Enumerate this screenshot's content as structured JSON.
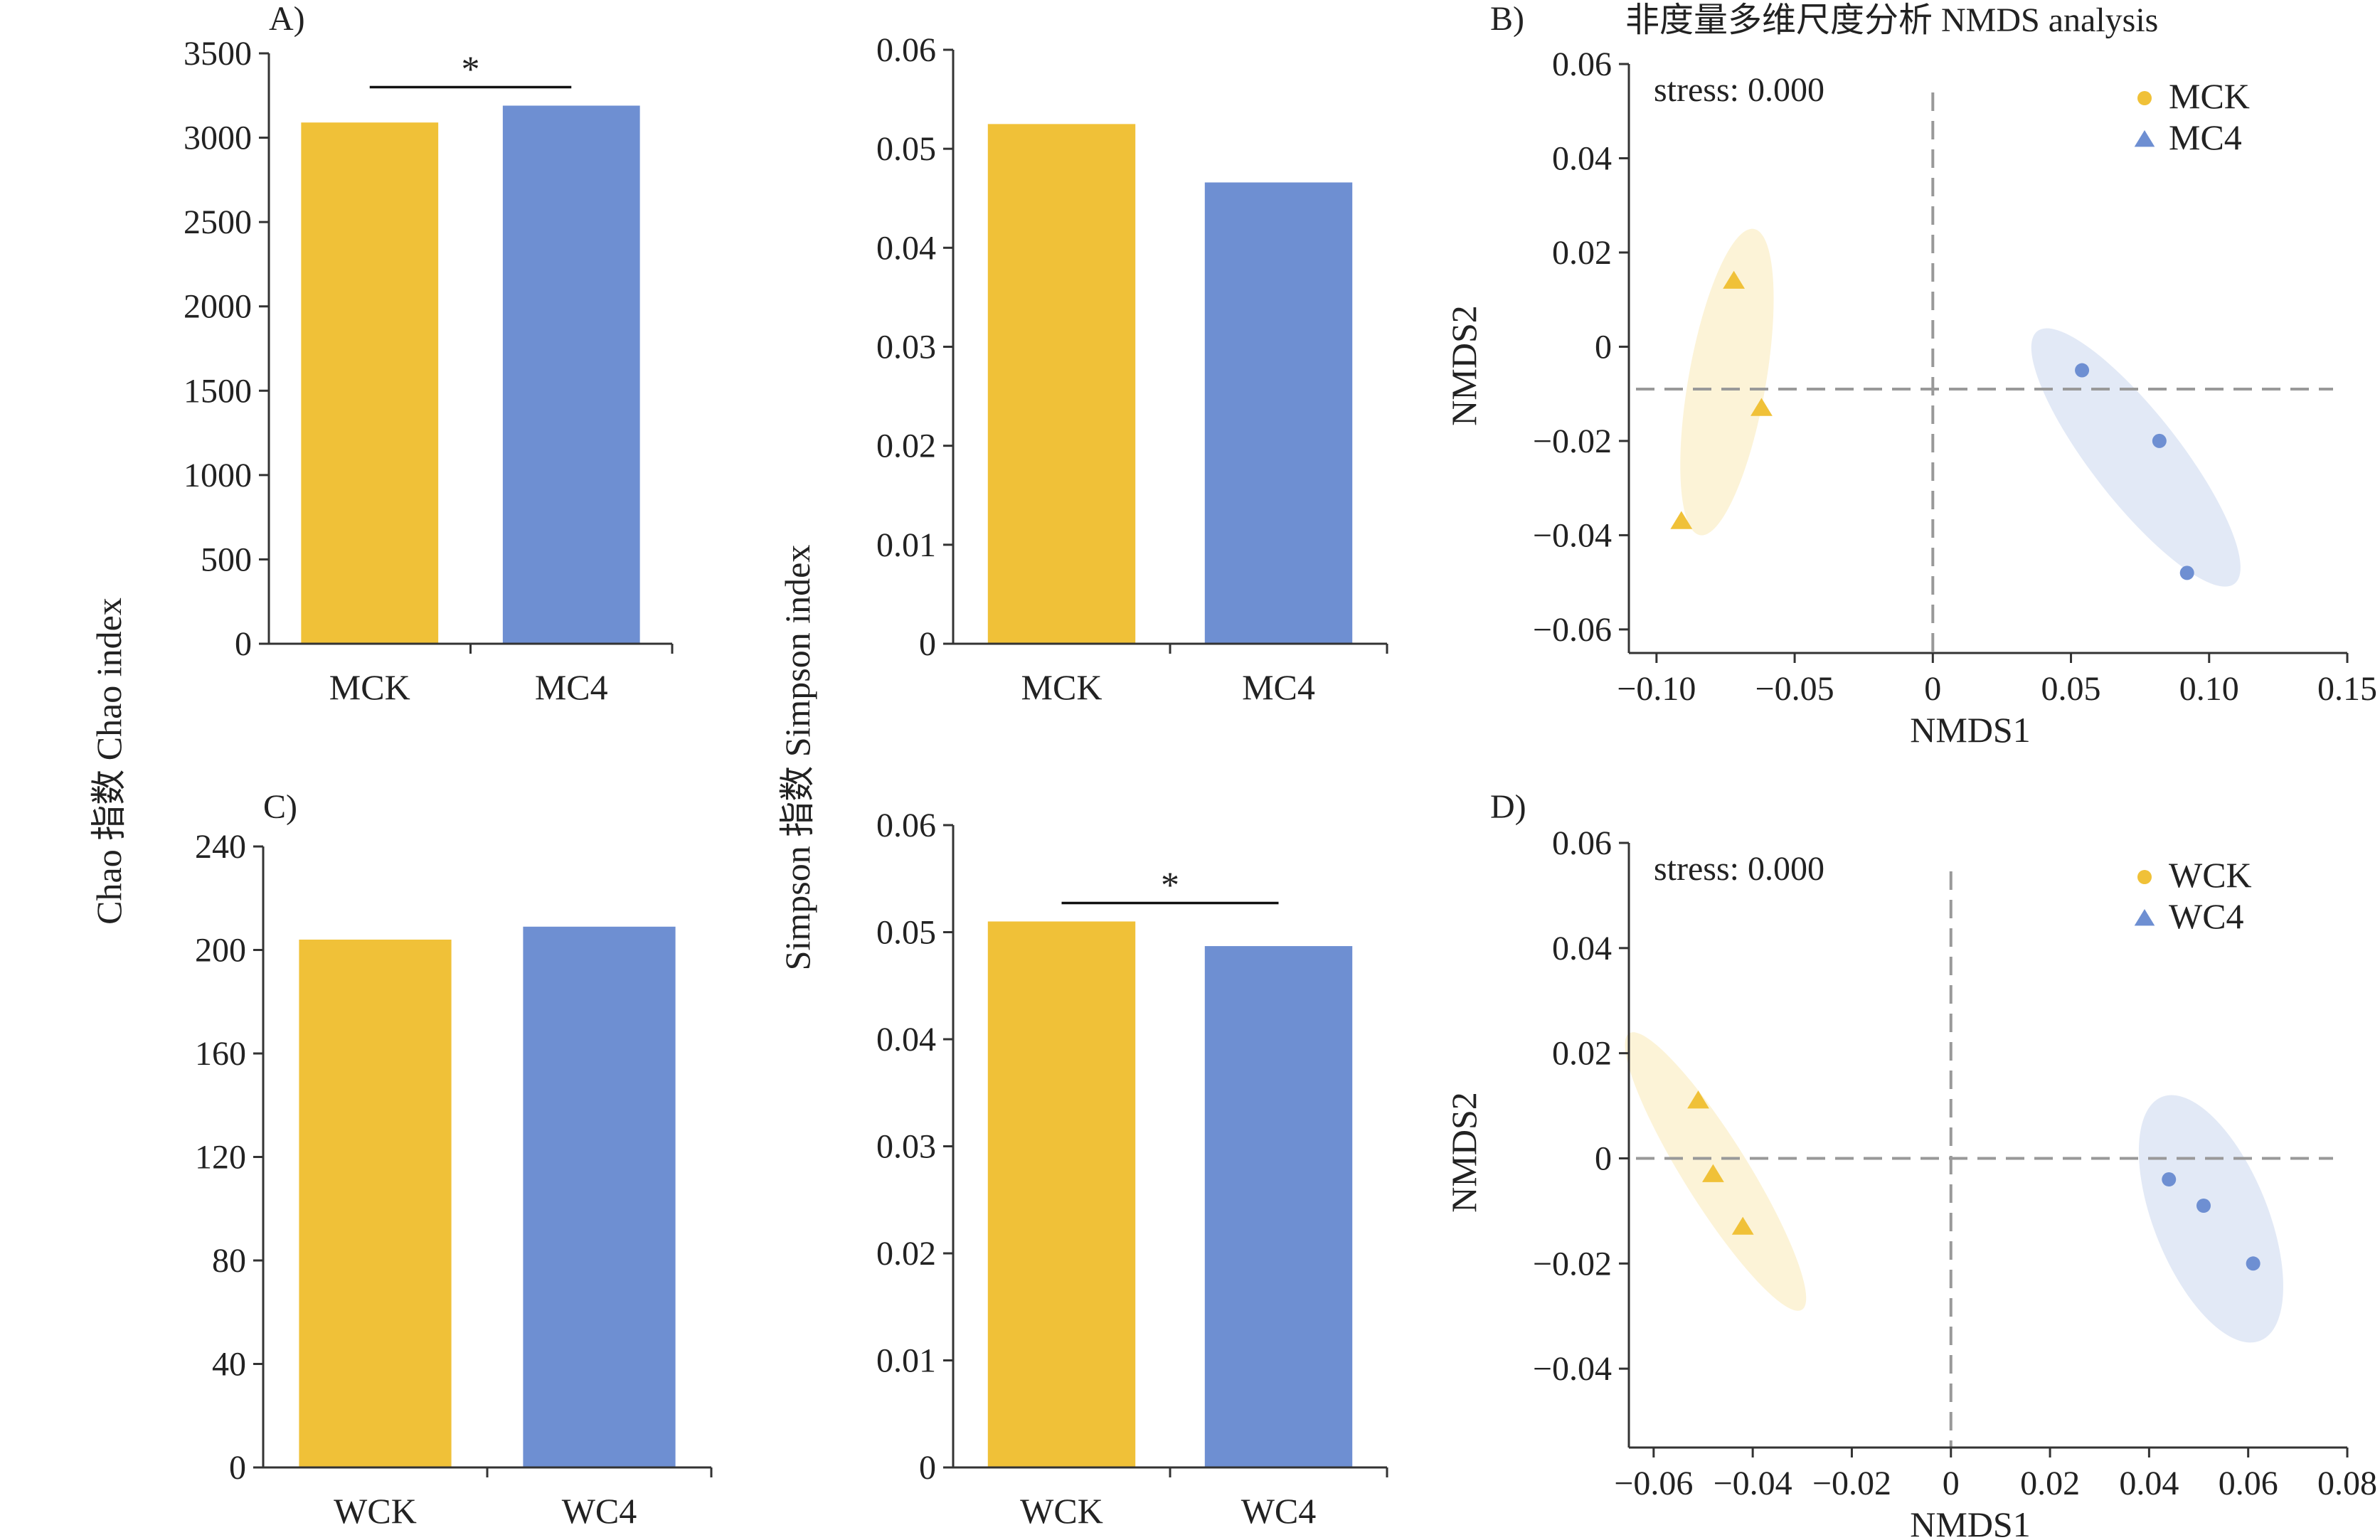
{
  "colors": {
    "ck": "#F0C138",
    "c4": "#6E8FD2",
    "axis": "#333333",
    "dash": "#999999"
  },
  "figure_title": "非度量多维尺度分析 NMDS analysis",
  "shared_labels": {
    "chao_ylabel": "Chao 指数 Chao index",
    "simpson_ylabel": "Simpson 指数 Simpson index"
  },
  "chart_data": [
    {
      "id": "chaoA",
      "type": "bar",
      "panel_label": "A)",
      "categories": [
        "MCK",
        "MC4"
      ],
      "values": [
        3090,
        3190
      ],
      "ylim": [
        0,
        3500
      ],
      "yticks": [
        "0",
        "500",
        "1000",
        "1500",
        "2000",
        "2500",
        "3000",
        "3500"
      ],
      "significance": "*"
    },
    {
      "id": "simpA",
      "type": "bar",
      "panel_label": "",
      "categories": [
        "MCK",
        "MC4"
      ],
      "values": [
        0.0525,
        0.0466
      ],
      "ylim": [
        0,
        0.06
      ],
      "yticks": [
        "0",
        "0.01",
        "0.02",
        "0.03",
        "0.04",
        "0.05",
        "0.06"
      ],
      "significance": ""
    },
    {
      "id": "nmdsB",
      "type": "scatter",
      "panel_label": "B)",
      "xlabel": "NMDS1",
      "ylabel": "NMDS2",
      "stress": "stress: 0.000",
      "xlim": [
        -0.11,
        0.15
      ],
      "ylim": [
        -0.065,
        0.06
      ],
      "xticks": [
        "−0.10",
        "−0.05",
        "0",
        "0.05",
        "0.10",
        "0.15"
      ],
      "yticks": [
        "−0.06",
        "−0.04",
        "−0.02",
        "0",
        "0.02",
        "0.04",
        "0.06"
      ],
      "legend": [
        "MCK",
        "MC4"
      ],
      "ck_points": [
        [
          -0.072,
          0.014
        ],
        [
          -0.062,
          -0.013
        ],
        [
          -0.091,
          -0.037
        ]
      ],
      "c4_points": [
        [
          0.054,
          -0.005
        ],
        [
          0.082,
          -0.02
        ],
        [
          0.092,
          -0.048
        ]
      ],
      "ck_ellipse": {
        "cx": -0.0745,
        "cy": -0.0075,
        "rx": 0.014,
        "ry": 0.033,
        "angle": 10
      },
      "c4_ellipse": {
        "cx": 0.0735,
        "cy": -0.0235,
        "rx": 0.016,
        "ry": 0.034,
        "angle": -38
      },
      "hline": -0.009,
      "vline": 0
    },
    {
      "id": "chaoC",
      "type": "bar",
      "panel_label": "C)",
      "categories": [
        "WCK",
        "WC4"
      ],
      "values": [
        204,
        209
      ],
      "ylim": [
        0,
        240
      ],
      "yticks": [
        "0",
        "40",
        "80",
        "120",
        "160",
        "200",
        "240"
      ],
      "significance": ""
    },
    {
      "id": "simpC",
      "type": "bar",
      "panel_label": "",
      "categories": [
        "WCK",
        "WC4"
      ],
      "values": [
        0.051,
        0.0487
      ],
      "ylim": [
        0,
        0.06
      ],
      "yticks": [
        "0",
        "0.01",
        "0.02",
        "0.03",
        "0.04",
        "0.05",
        "0.06"
      ],
      "significance": "*"
    },
    {
      "id": "nmdsD",
      "type": "scatter",
      "panel_label": "D)",
      "xlabel": "NMDS1",
      "ylabel": "NMDS2",
      "stress": "stress: 0.000",
      "xlim": [
        -0.065,
        0.08
      ],
      "ylim": [
        -0.055,
        0.06
      ],
      "xticks": [
        "−0.06",
        "−0.04",
        "−0.02",
        "0",
        "0.02",
        "0.04",
        "0.06",
        "0.08"
      ],
      "yticks": [
        "−0.04",
        "−0.02",
        "0",
        "0.02",
        "0.04",
        "0.06"
      ],
      "legend": [
        "WCK",
        "WC4"
      ],
      "ck_points": [
        [
          -0.051,
          0.011
        ],
        [
          -0.048,
          -0.003
        ],
        [
          -0.042,
          -0.013
        ]
      ],
      "c4_points": [
        [
          0.044,
          -0.004
        ],
        [
          0.051,
          -0.009
        ],
        [
          0.061,
          -0.02
        ]
      ],
      "ck_ellipse": {
        "cx": -0.0475,
        "cy": -0.0025,
        "rx": 0.0065,
        "ry": 0.031,
        "angle": -32
      },
      "c4_ellipse": {
        "cx": 0.0525,
        "cy": -0.0115,
        "rx": 0.0115,
        "ry": 0.025,
        "angle": -22
      },
      "hline": 0,
      "vline": 0
    }
  ]
}
